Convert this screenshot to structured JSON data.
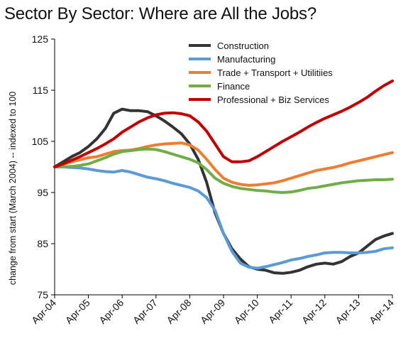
{
  "chart_data": {
    "type": "line",
    "title": "Sector By Sector: Where are All the Jobs?",
    "xlabel": "",
    "ylabel": "change from start (March 2004) -- indexed to 100",
    "ylim": [
      75,
      125
    ],
    "yticks": [
      75,
      85,
      95,
      105,
      115,
      125
    ],
    "xlim": [
      2004.25,
      2014.25
    ],
    "xticks": [
      {
        "label": "Apr-04",
        "x": 2004.25
      },
      {
        "label": "Apr-05",
        "x": 2005.25
      },
      {
        "label": "Apr-06",
        "x": 2006.25
      },
      {
        "label": "Apr-07",
        "x": 2007.25
      },
      {
        "label": "Apr-08",
        "x": 2008.25
      },
      {
        "label": "Apr-09",
        "x": 2009.25
      },
      {
        "label": "Apr-10",
        "x": 2010.25
      },
      {
        "label": "Apr-11",
        "x": 2011.25
      },
      {
        "label": "Apr-12",
        "x": 2012.25
      },
      {
        "label": "Apr-13",
        "x": 2013.25
      },
      {
        "label": "Apr-14",
        "x": 2014.25
      }
    ],
    "grid": false,
    "legend_position": "top-right",
    "series": [
      {
        "name": "Construction",
        "color": "#333333",
        "points": [
          [
            2004.25,
            100
          ],
          [
            2004.5,
            101
          ],
          [
            2004.75,
            102
          ],
          [
            2005.0,
            102.8
          ],
          [
            2005.25,
            104
          ],
          [
            2005.5,
            105.5
          ],
          [
            2005.75,
            107.5
          ],
          [
            2006.0,
            110.5
          ],
          [
            2006.25,
            111.3
          ],
          [
            2006.5,
            111
          ],
          [
            2006.75,
            111
          ],
          [
            2007.0,
            110.8
          ],
          [
            2007.25,
            110
          ],
          [
            2007.5,
            109
          ],
          [
            2007.75,
            107.8
          ],
          [
            2008.0,
            106.5
          ],
          [
            2008.25,
            104.5
          ],
          [
            2008.5,
            101.5
          ],
          [
            2008.75,
            97
          ],
          [
            2009.0,
            91
          ],
          [
            2009.25,
            87
          ],
          [
            2009.5,
            84
          ],
          [
            2009.75,
            82
          ],
          [
            2010.0,
            80.5
          ],
          [
            2010.25,
            80
          ],
          [
            2010.5,
            79.8
          ],
          [
            2010.75,
            79.3
          ],
          [
            2011.0,
            79.2
          ],
          [
            2011.25,
            79.4
          ],
          [
            2011.5,
            79.8
          ],
          [
            2011.75,
            80.5
          ],
          [
            2012.0,
            81
          ],
          [
            2012.25,
            81.2
          ],
          [
            2012.5,
            81
          ],
          [
            2012.75,
            81.5
          ],
          [
            2013.0,
            82.5
          ],
          [
            2013.25,
            83.2
          ],
          [
            2013.5,
            84.5
          ],
          [
            2013.75,
            85.8
          ],
          [
            2014.0,
            86.5
          ],
          [
            2014.25,
            87
          ]
        ]
      },
      {
        "name": "Manufacturing",
        "color": "#5b9bd5",
        "points": [
          [
            2004.25,
            100
          ],
          [
            2004.5,
            100
          ],
          [
            2004.75,
            99.9
          ],
          [
            2005.0,
            99.8
          ],
          [
            2005.25,
            99.6
          ],
          [
            2005.5,
            99.3
          ],
          [
            2005.75,
            99.1
          ],
          [
            2006.0,
            99
          ],
          [
            2006.25,
            99.3
          ],
          [
            2006.5,
            99
          ],
          [
            2006.75,
            98.5
          ],
          [
            2007.0,
            98
          ],
          [
            2007.25,
            97.7
          ],
          [
            2007.5,
            97.3
          ],
          [
            2007.75,
            96.8
          ],
          [
            2008.0,
            96.4
          ],
          [
            2008.25,
            96
          ],
          [
            2008.5,
            95.3
          ],
          [
            2008.75,
            94
          ],
          [
            2009.0,
            91.5
          ],
          [
            2009.25,
            87
          ],
          [
            2009.5,
            83.5
          ],
          [
            2009.75,
            81.2
          ],
          [
            2010.0,
            80.4
          ],
          [
            2010.25,
            80.2
          ],
          [
            2010.5,
            80.5
          ],
          [
            2010.75,
            80.9
          ],
          [
            2011.0,
            81.3
          ],
          [
            2011.25,
            81.8
          ],
          [
            2011.5,
            82.1
          ],
          [
            2011.75,
            82.5
          ],
          [
            2012.0,
            82.8
          ],
          [
            2012.25,
            83.2
          ],
          [
            2012.5,
            83.3
          ],
          [
            2012.75,
            83.3
          ],
          [
            2013.0,
            83.2
          ],
          [
            2013.25,
            83.2
          ],
          [
            2013.5,
            83.3
          ],
          [
            2013.75,
            83.5
          ],
          [
            2014.0,
            84
          ],
          [
            2014.25,
            84.2
          ]
        ]
      },
      {
        "name": "Trade + Transport + Utilitiies",
        "color": "#ed7d31",
        "points": [
          [
            2004.25,
            100
          ],
          [
            2004.5,
            100.5
          ],
          [
            2004.75,
            101
          ],
          [
            2005.0,
            101.4
          ],
          [
            2005.25,
            101.8
          ],
          [
            2005.5,
            102
          ],
          [
            2005.75,
            102.5
          ],
          [
            2006.0,
            103
          ],
          [
            2006.25,
            103.2
          ],
          [
            2006.5,
            103.3
          ],
          [
            2006.75,
            103.6
          ],
          [
            2007.0,
            104
          ],
          [
            2007.25,
            104.3
          ],
          [
            2007.5,
            104.5
          ],
          [
            2007.75,
            104.6
          ],
          [
            2008.0,
            104.7
          ],
          [
            2008.25,
            104.3
          ],
          [
            2008.5,
            103.3
          ],
          [
            2008.75,
            101.5
          ],
          [
            2009.0,
            99.5
          ],
          [
            2009.25,
            97.8
          ],
          [
            2009.5,
            97
          ],
          [
            2009.75,
            96.6
          ],
          [
            2010.0,
            96.4
          ],
          [
            2010.25,
            96.5
          ],
          [
            2010.5,
            96.7
          ],
          [
            2010.75,
            96.9
          ],
          [
            2011.0,
            97.3
          ],
          [
            2011.25,
            97.8
          ],
          [
            2011.5,
            98.3
          ],
          [
            2011.75,
            98.8
          ],
          [
            2012.0,
            99.3
          ],
          [
            2012.25,
            99.6
          ],
          [
            2012.5,
            99.9
          ],
          [
            2012.75,
            100.3
          ],
          [
            2013.0,
            100.8
          ],
          [
            2013.25,
            101.2
          ],
          [
            2013.5,
            101.6
          ],
          [
            2013.75,
            102
          ],
          [
            2014.0,
            102.4
          ],
          [
            2014.25,
            102.8
          ]
        ]
      },
      {
        "name": "Finance",
        "color": "#70ad47",
        "points": [
          [
            2004.25,
            100
          ],
          [
            2004.5,
            100
          ],
          [
            2004.75,
            100.1
          ],
          [
            2005.0,
            100.3
          ],
          [
            2005.25,
            100.6
          ],
          [
            2005.5,
            101.2
          ],
          [
            2005.75,
            101.8
          ],
          [
            2006.0,
            102.5
          ],
          [
            2006.25,
            103
          ],
          [
            2006.5,
            103.2
          ],
          [
            2006.75,
            103.4
          ],
          [
            2007.0,
            103.5
          ],
          [
            2007.25,
            103.4
          ],
          [
            2007.5,
            103
          ],
          [
            2007.75,
            102.5
          ],
          [
            2008.0,
            102
          ],
          [
            2008.25,
            101.5
          ],
          [
            2008.5,
            100.8
          ],
          [
            2008.75,
            99.5
          ],
          [
            2009.0,
            97.8
          ],
          [
            2009.25,
            96.8
          ],
          [
            2009.5,
            96.2
          ],
          [
            2009.75,
            95.8
          ],
          [
            2010.0,
            95.6
          ],
          [
            2010.25,
            95.4
          ],
          [
            2010.5,
            95.3
          ],
          [
            2010.75,
            95.1
          ],
          [
            2011.0,
            95
          ],
          [
            2011.25,
            95.1
          ],
          [
            2011.5,
            95.4
          ],
          [
            2011.75,
            95.8
          ],
          [
            2012.0,
            96
          ],
          [
            2012.25,
            96.3
          ],
          [
            2012.5,
            96.6
          ],
          [
            2012.75,
            96.9
          ],
          [
            2013.0,
            97.1
          ],
          [
            2013.25,
            97.3
          ],
          [
            2013.5,
            97.4
          ],
          [
            2013.75,
            97.5
          ],
          [
            2014.0,
            97.5
          ],
          [
            2014.25,
            97.6
          ]
        ]
      },
      {
        "name": "Professional + Biz Services",
        "color": "#c00000",
        "points": [
          [
            2004.25,
            100
          ],
          [
            2004.5,
            100.6
          ],
          [
            2004.75,
            101.3
          ],
          [
            2005.0,
            102
          ],
          [
            2005.25,
            102.8
          ],
          [
            2005.5,
            103.6
          ],
          [
            2005.75,
            104.5
          ],
          [
            2006.0,
            105.5
          ],
          [
            2006.25,
            106.8
          ],
          [
            2006.5,
            107.8
          ],
          [
            2006.75,
            108.8
          ],
          [
            2007.0,
            109.6
          ],
          [
            2007.25,
            110.2
          ],
          [
            2007.5,
            110.5
          ],
          [
            2007.75,
            110.6
          ],
          [
            2008.0,
            110.4
          ],
          [
            2008.25,
            110
          ],
          [
            2008.5,
            108.8
          ],
          [
            2008.75,
            107
          ],
          [
            2009.0,
            104.5
          ],
          [
            2009.25,
            102
          ],
          [
            2009.5,
            101
          ],
          [
            2009.75,
            101
          ],
          [
            2010.0,
            101.2
          ],
          [
            2010.25,
            102
          ],
          [
            2010.5,
            103
          ],
          [
            2010.75,
            104
          ],
          [
            2011.0,
            105
          ],
          [
            2011.25,
            105.9
          ],
          [
            2011.5,
            106.8
          ],
          [
            2011.75,
            107.8
          ],
          [
            2012.0,
            108.7
          ],
          [
            2012.25,
            109.5
          ],
          [
            2012.5,
            110.2
          ],
          [
            2012.75,
            110.9
          ],
          [
            2013.0,
            111.7
          ],
          [
            2013.25,
            112.6
          ],
          [
            2013.5,
            113.6
          ],
          [
            2013.75,
            114.8
          ],
          [
            2014.0,
            115.9
          ],
          [
            2014.25,
            116.8
          ]
        ]
      }
    ]
  }
}
